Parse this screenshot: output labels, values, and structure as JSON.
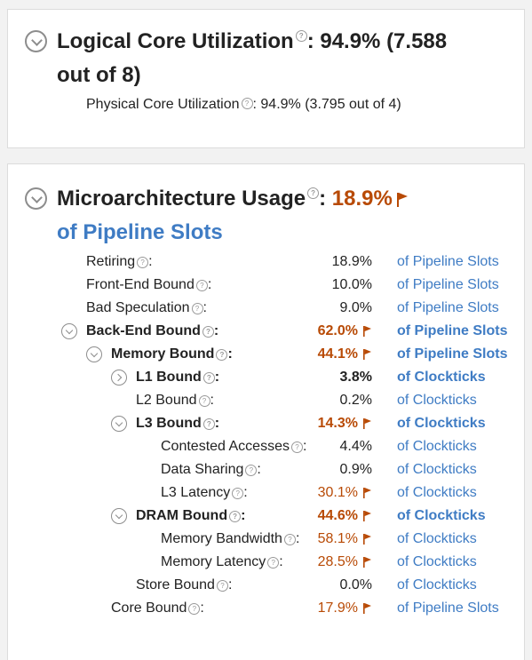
{
  "logical": {
    "title": "Logical Core Utilization",
    "help": "?",
    "value_line1": ": 94.9% (7.588",
    "value_line2": "out of 8)",
    "physical_label": "Physical Core Utilization",
    "physical_value": ": 94.9% (3.795 out of 4)"
  },
  "micro": {
    "title": "Microarchitecture Usage",
    "help": "?",
    "colon": ": ",
    "value": "18.9%",
    "subtitle": "of Pipeline Slots",
    "rows": [
      {
        "label": "Retiring",
        "sep": ":",
        "value": "18.9%",
        "unit": "of Pipeline Slots"
      },
      {
        "label": "Front-End Bound",
        "sep": ":",
        "value": "10.0%",
        "unit": "of Pipeline Slots"
      },
      {
        "label": "Bad Speculation",
        "sep": ":",
        "value": "9.0%",
        "unit": "of Pipeline Slots"
      },
      {
        "label": "Back-End Bound",
        "sep": ":",
        "value": "62.0%",
        "unit": "of Pipeline Slots"
      },
      {
        "label": "Memory Bound",
        "sep": ":",
        "value": "44.1%",
        "unit": "of Pipeline Slots"
      },
      {
        "label": "L1 Bound",
        "sep": ":",
        "value": "3.8%",
        "unit": "of Clockticks"
      },
      {
        "label": "L2 Bound",
        "sep": ":",
        "value": "0.2%",
        "unit": "of Clockticks"
      },
      {
        "label": "L3 Bound",
        "sep": ":",
        "value": "14.3%",
        "unit": "of Clockticks"
      },
      {
        "label": "Contested Accesses",
        "sep": ":",
        "value": "4.4%",
        "unit": "of Clockticks"
      },
      {
        "label": "Data Sharing",
        "sep": ":",
        "value": "0.9%",
        "unit": "of Clockticks"
      },
      {
        "label": "L3 Latency",
        "sep": ":",
        "value": "30.1%",
        "unit": "of Clockticks"
      },
      {
        "label": "DRAM Bound",
        "sep": ":",
        "value": "44.6%",
        "unit": "of Clockticks"
      },
      {
        "label": "Memory Bandwidth",
        "sep": ":",
        "value": "58.1%",
        "unit": "of Clockticks"
      },
      {
        "label": "Memory Latency",
        "sep": ":",
        "value": "28.5%",
        "unit": "of Clockticks"
      },
      {
        "label": "Store Bound",
        "sep": ":",
        "value": "0.0%",
        "unit": "of Clockticks"
      },
      {
        "label": "Core Bound",
        "sep": ":",
        "value": "17.9%",
        "unit": "of Pipeline Slots"
      }
    ]
  },
  "colors": {
    "accent_hot": "#b84a05",
    "link_blue": "#3f7cc4",
    "flag": "#b84a05"
  }
}
